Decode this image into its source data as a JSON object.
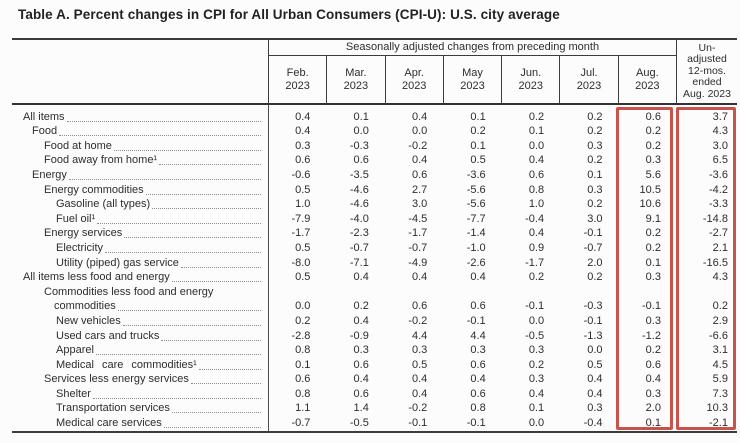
{
  "title": "Table A. Percent changes in CPI for All Urban Consumers (CPI-U): U.S. city average",
  "colors": {
    "highlight_box": "#c8524c"
  },
  "table": {
    "spanner": "Seasonally adjusted changes from preceding month",
    "unadjusted_header_lines": [
      "Un-",
      "adjusted",
      "12-mos.",
      "ended",
      "Aug. 2023"
    ],
    "month_columns": [
      {
        "month": "Feb.",
        "year": "2023"
      },
      {
        "month": "Mar.",
        "year": "2023"
      },
      {
        "month": "Apr.",
        "year": "2023"
      },
      {
        "month": "May",
        "year": "2023"
      },
      {
        "month": "Jun.",
        "year": "2023"
      },
      {
        "month": "Jul.",
        "year": "2023"
      },
      {
        "month": "Aug.",
        "year": "2023"
      }
    ],
    "rows": [
      {
        "label": "All items",
        "indent": 0,
        "values": [
          "0.4",
          "0.1",
          "0.4",
          "0.1",
          "0.2",
          "0.2",
          "0.6"
        ],
        "unadjusted": "3.7"
      },
      {
        "label": "Food",
        "indent": 1,
        "values": [
          "0.4",
          "0.0",
          "0.0",
          "0.2",
          "0.1",
          "0.2",
          "0.2"
        ],
        "unadjusted": "4.3"
      },
      {
        "label": "Food at home",
        "indent": 2,
        "values": [
          "0.3",
          "-0.3",
          "-0.2",
          "0.1",
          "0.0",
          "0.3",
          "0.2"
        ],
        "unadjusted": "3.0"
      },
      {
        "label": "Food away from home¹",
        "indent": 2,
        "values": [
          "0.6",
          "0.6",
          "0.4",
          "0.5",
          "0.4",
          "0.2",
          "0.3"
        ],
        "unadjusted": "6.5"
      },
      {
        "label": "Energy",
        "indent": 1,
        "values": [
          "-0.6",
          "-3.5",
          "0.6",
          "-3.6",
          "0.6",
          "0.1",
          "5.6"
        ],
        "unadjusted": "-3.6"
      },
      {
        "label": "Energy commodities",
        "indent": 2,
        "values": [
          "0.5",
          "-4.6",
          "2.7",
          "-5.6",
          "0.8",
          "0.3",
          "10.5"
        ],
        "unadjusted": "-4.2"
      },
      {
        "label": "Gasoline (all types)",
        "indent": 3,
        "values": [
          "1.0",
          "-4.6",
          "3.0",
          "-5.6",
          "1.0",
          "0.2",
          "10.6"
        ],
        "unadjusted": "-3.3"
      },
      {
        "label": "Fuel oil¹",
        "indent": 3,
        "values": [
          "-7.9",
          "-4.0",
          "-4.5",
          "-7.7",
          "-0.4",
          "3.0",
          "9.1"
        ],
        "unadjusted": "-14.8"
      },
      {
        "label": "Energy services",
        "indent": 2,
        "values": [
          "-1.7",
          "-2.3",
          "-1.7",
          "-1.4",
          "0.4",
          "-0.1",
          "0.2"
        ],
        "unadjusted": "-2.7"
      },
      {
        "label": "Electricity",
        "indent": 3,
        "values": [
          "0.5",
          "-0.7",
          "-0.7",
          "-1.0",
          "0.9",
          "-0.7",
          "0.2"
        ],
        "unadjusted": "2.1"
      },
      {
        "label": "Utility (piped) gas service",
        "indent": 3,
        "values": [
          "-8.0",
          "-7.1",
          "-4.9",
          "-2.6",
          "-1.7",
          "2.0",
          "0.1"
        ],
        "unadjusted": "-16.5"
      },
      {
        "label": "All items less food and energy",
        "indent": 0,
        "values": [
          "0.5",
          "0.4",
          "0.4",
          "0.4",
          "0.2",
          "0.2",
          "0.3"
        ],
        "unadjusted": "4.3"
      },
      {
        "label": "Commodities less food and energy",
        "label2": "commodities",
        "indent": 2,
        "values": [
          "0.0",
          "0.2",
          "0.6",
          "0.6",
          "-0.1",
          "-0.3",
          "-0.1"
        ],
        "unadjusted": "0.2"
      },
      {
        "label": "New vehicles",
        "indent": 3,
        "values": [
          "0.2",
          "0.4",
          "-0.2",
          "-0.1",
          "0.0",
          "-0.1",
          "0.3"
        ],
        "unadjusted": "2.9"
      },
      {
        "label": "Used cars and trucks",
        "indent": 3,
        "values": [
          "-2.8",
          "-0.9",
          "4.4",
          "4.4",
          "-0.5",
          "-1.3",
          "-1.2"
        ],
        "unadjusted": "-6.6"
      },
      {
        "label": "Apparel",
        "indent": 3,
        "values": [
          "0.8",
          "0.3",
          "0.3",
          "0.3",
          "0.3",
          "0.0",
          "0.2"
        ],
        "unadjusted": "3.1"
      },
      {
        "label": "Medical care commodities¹",
        "indent": 3,
        "wide_spacing": true,
        "values": [
          "0.1",
          "0.6",
          "0.5",
          "0.6",
          "0.2",
          "0.5",
          "0.6"
        ],
        "unadjusted": "4.5"
      },
      {
        "label": "Services less energy services",
        "indent": 2,
        "values": [
          "0.6",
          "0.4",
          "0.4",
          "0.4",
          "0.3",
          "0.4",
          "0.4"
        ],
        "unadjusted": "5.9"
      },
      {
        "label": "Shelter",
        "indent": 3,
        "values": [
          "0.8",
          "0.6",
          "0.4",
          "0.6",
          "0.4",
          "0.4",
          "0.3"
        ],
        "unadjusted": "7.3"
      },
      {
        "label": "Transportation services",
        "indent": 3,
        "values": [
          "1.1",
          "1.4",
          "-0.2",
          "0.8",
          "0.1",
          "0.3",
          "2.0"
        ],
        "unadjusted": "10.3"
      },
      {
        "label": "Medical care services",
        "indent": 3,
        "values": [
          "-0.7",
          "-0.5",
          "-0.1",
          "-0.1",
          "0.0",
          "-0.4",
          "0.1"
        ],
        "unadjusted": "-2.1"
      }
    ]
  }
}
